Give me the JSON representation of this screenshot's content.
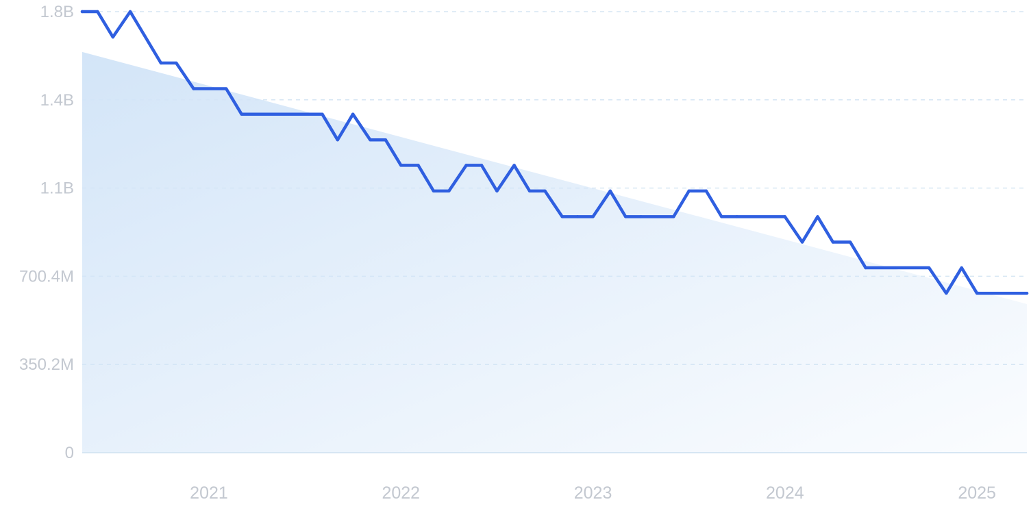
{
  "chart_data": {
    "type": "line",
    "title": "",
    "xlabel": "",
    "ylabel": "",
    "ylim": [
      0,
      1751000000
    ],
    "xlim": [
      2020.34,
      2025.26
    ],
    "y_ticks": [
      {
        "value": 0,
        "label": "0"
      },
      {
        "value": 350200000,
        "label": "350.2M"
      },
      {
        "value": 700400000,
        "label": "700.4M"
      },
      {
        "value": 1050600000,
        "label": "1.1B"
      },
      {
        "value": 1400800000,
        "label": "1.4B"
      },
      {
        "value": 1751000000,
        "label": "1.8B"
      }
    ],
    "x_ticks": [
      {
        "value": 2021,
        "label": "2021"
      },
      {
        "value": 2022,
        "label": "2022"
      },
      {
        "value": 2023,
        "label": "2023"
      },
      {
        "value": 2024,
        "label": "2024"
      },
      {
        "value": 2025,
        "label": "2025"
      }
    ],
    "grid": true,
    "colors": {
      "line": "#2f5fe0",
      "area": "#d3e5f8",
      "grid": "#d6e6f3",
      "tick_text": "#c3c8d0",
      "baseline": "#d6e6f3"
    },
    "trend_area": {
      "name": "trend",
      "x": [
        2020.34,
        2025.26
      ],
      "y": [
        1591000000,
        590000000
      ]
    },
    "series": [
      {
        "name": "value",
        "x": [
          2020.34,
          2020.42,
          2020.5,
          2020.59,
          2020.75,
          2020.83,
          2020.92,
          2021.09,
          2021.17,
          2021.59,
          2021.67,
          2021.75,
          2021.84,
          2021.92,
          2022.0,
          2022.09,
          2022.17,
          2022.25,
          2022.34,
          2022.42,
          2022.5,
          2022.59,
          2022.67,
          2022.75,
          2022.84,
          2022.92,
          2023.0,
          2023.09,
          2023.17,
          2023.25,
          2023.42,
          2023.5,
          2023.59,
          2023.67,
          2023.75,
          2024.0,
          2024.09,
          2024.17,
          2024.25,
          2024.34,
          2024.42,
          2024.75,
          2024.84,
          2024.92,
          2025.0,
          2025.26
        ],
        "y": [
          1751000000,
          1751000000,
          1650000000,
          1751000000,
          1547000000,
          1547000000,
          1445000000,
          1445000000,
          1344000000,
          1344000000,
          1242000000,
          1344000000,
          1242000000,
          1242000000,
          1141000000,
          1141000000,
          1039000000,
          1039000000,
          1141000000,
          1141000000,
          1039000000,
          1141000000,
          1039000000,
          1039000000,
          937000000,
          937000000,
          937000000,
          1039000000,
          937000000,
          937000000,
          937000000,
          1039000000,
          1039000000,
          937000000,
          937000000,
          937000000,
          836000000,
          937000000,
          836000000,
          836000000,
          734000000,
          734000000,
          633000000,
          734000000,
          633000000,
          633000000
        ]
      }
    ]
  }
}
